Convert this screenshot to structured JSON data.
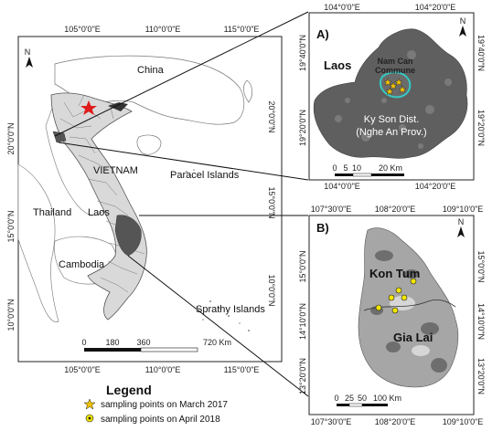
{
  "main_map": {
    "top_ticks": [
      "105°0'0\"E",
      "110°0'0\"E",
      "115°0'0\"E"
    ],
    "bottom_ticks": [
      "105°0'0\"E",
      "110°0'0\"E",
      "115°0'0\"E"
    ],
    "left_ticks": [
      "20°0'0\"N",
      "15°0'0\"N",
      "10°0'0\"N"
    ],
    "right_ticks": [
      "20°0'0\"N",
      "15°0'0\"N",
      "10°0'0\"N"
    ],
    "labels": {
      "china": "China",
      "vietnam": "VIETNAM",
      "paracel": "Paracel Islands",
      "thailand": "Thailand",
      "laos": "Laos",
      "cambodia": "Cambodia",
      "sprathy": "Sprathy Islands"
    },
    "north": "N",
    "scale": [
      "0",
      "180",
      "360",
      "720 Km"
    ]
  },
  "inset_a": {
    "panel_label": "A)",
    "top_ticks": [
      "104°0'0\"E",
      "104°20'0\"E"
    ],
    "bottom_ticks": [
      "104°0'0\"E",
      "104°20'0\"E"
    ],
    "left_ticks": [
      "19°40'0\"N",
      "19°20'0\"N"
    ],
    "right_ticks": [
      "19°40'0\"N",
      "19°20'0\"N"
    ],
    "laos": "Laos",
    "commune_line1": "Nam Can",
    "commune_line2": "Commune",
    "district_line1": "Ky Son Dist.",
    "district_line2": "(Nghe An Prov.)",
    "north": "N",
    "scale": [
      "0",
      "5",
      "10",
      "20 Km"
    ]
  },
  "inset_b": {
    "panel_label": "B)",
    "top_ticks": [
      "107°30'0\"E",
      "108°20'0\"E",
      "109°10'0\"E"
    ],
    "bottom_ticks": [
      "107°30'0\"E",
      "108°20'0\"E",
      "109°10'0\"E"
    ],
    "left_ticks": [
      "15°0'0\"N",
      "14°10'0\"N",
      "13°20'0\"N"
    ],
    "right_ticks": [
      "15°0'0\"N",
      "14°10'0\"N",
      "13°20'0\"N"
    ],
    "kontum": "Kon Tum",
    "gialai": "Gia Lai",
    "north": "N",
    "scale": [
      "0",
      "25",
      "50",
      "100 Km"
    ]
  },
  "legend": {
    "title": "Legend",
    "item1": "sampling points on March 2017",
    "item2": "sampling points on April 2018",
    "color_star": "#f2c200",
    "color_circle": "#f2e600"
  },
  "colors": {
    "vietnam_fill": "#d9d9d9",
    "highlight": "#555555",
    "marker_red": "#e01b1b",
    "commune_outline": "#35c9c2"
  }
}
